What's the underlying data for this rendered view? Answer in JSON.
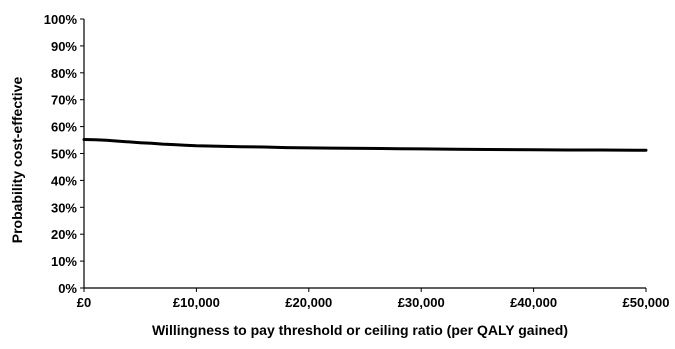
{
  "chart_data": {
    "type": "line",
    "title": "",
    "xlabel": "Willingness to pay threshold or ceiling ratio (per QALY gained)",
    "ylabel": "Probability cost-effective",
    "xlim": [
      0,
      50000
    ],
    "ylim": [
      0,
      100
    ],
    "x_ticks": [
      0,
      10000,
      20000,
      30000,
      40000,
      50000
    ],
    "x_tick_labels": [
      "£0",
      "£10,000",
      "£20,000",
      "£30,000",
      "£40,000",
      "£50,000"
    ],
    "y_ticks": [
      0,
      10,
      20,
      30,
      40,
      50,
      60,
      70,
      80,
      90,
      100
    ],
    "y_tick_labels": [
      "0%",
      "10%",
      "20%",
      "30%",
      "40%",
      "50%",
      "60%",
      "70%",
      "80%",
      "90%",
      "100%"
    ],
    "grid": false,
    "legend": "none",
    "line_color": "#000000",
    "series": [
      {
        "x": [
          0,
          1000,
          2000,
          3000,
          4000,
          5000,
          6000,
          7000,
          8000,
          9000,
          10000,
          12000,
          14000,
          16000,
          18000,
          20000,
          22000,
          25000,
          28000,
          30000,
          33000,
          36000,
          40000,
          43000,
          46000,
          50000
        ],
        "values": [
          55.2,
          55.1,
          54.9,
          54.6,
          54.3,
          54.0,
          53.8,
          53.5,
          53.3,
          53.1,
          52.9,
          52.7,
          52.5,
          52.4,
          52.2,
          52.1,
          52.0,
          51.9,
          51.8,
          51.7,
          51.6,
          51.5,
          51.4,
          51.3,
          51.3,
          51.2
        ]
      }
    ]
  }
}
